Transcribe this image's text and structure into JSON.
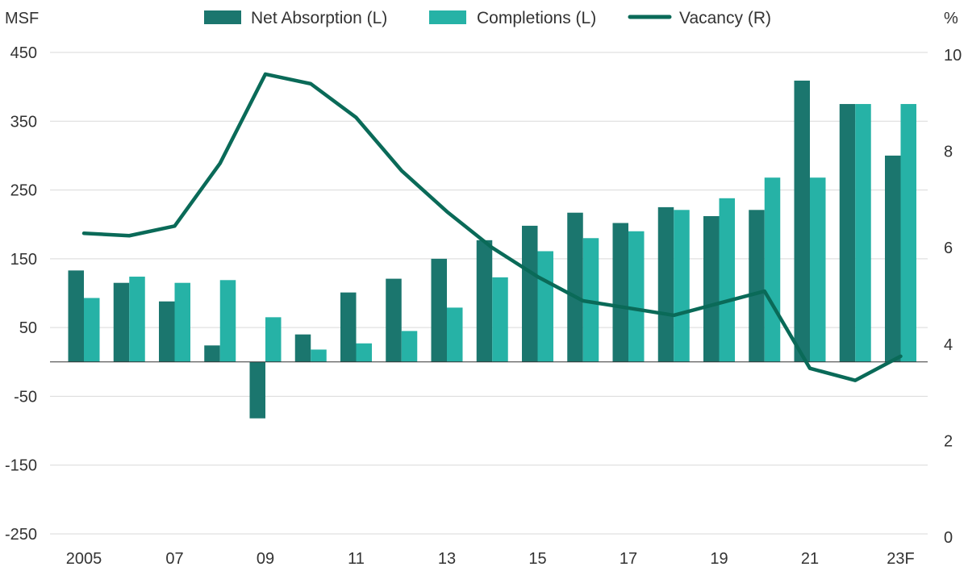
{
  "chart_data": {
    "type": "bar",
    "y_left_label": "MSF",
    "y_right_label": "%",
    "x_ticks": [
      "2005",
      "07",
      "09",
      "11",
      "13",
      "15",
      "17",
      "19",
      "21",
      "23F"
    ],
    "y_left_ticks": [
      "450",
      "350",
      "250",
      "150",
      "50",
      "-50",
      "-150",
      "-250"
    ],
    "y_right_ticks": [
      "10",
      "8",
      "6",
      "4",
      "2",
      "0"
    ],
    "ylim_left": [
      -250,
      450
    ],
    "ylim_right": [
      0,
      10
    ],
    "categories": [
      "2005",
      "2006",
      "2007",
      "2008",
      "2009",
      "2010",
      "2011",
      "2012",
      "2013",
      "2014",
      "2015",
      "2016",
      "2017",
      "2018",
      "2019",
      "2020",
      "2021",
      "2022",
      "2023F"
    ],
    "series": [
      {
        "name": "Net Absorption (L)",
        "type": "bar",
        "axis": "left",
        "color": "#1b766e",
        "values": [
          133,
          115,
          88,
          24,
          -82,
          40,
          101,
          121,
          150,
          177,
          198,
          217,
          202,
          225,
          212,
          221,
          409,
          375,
          300
        ]
      },
      {
        "name": "Completions (L)",
        "type": "bar",
        "axis": "left",
        "color": "#26b2a6",
        "values": [
          93,
          124,
          115,
          119,
          65,
          18,
          27,
          45,
          79,
          123,
          161,
          180,
          190,
          221,
          238,
          268,
          268,
          375,
          375
        ]
      },
      {
        "name": "Vacancy (R)",
        "type": "line",
        "axis": "right",
        "color": "#0a6a58",
        "values": [
          6.3,
          6.25,
          6.45,
          7.75,
          9.6,
          9.4,
          8.7,
          7.6,
          6.75,
          6.0,
          5.4,
          4.9,
          4.75,
          4.6,
          4.85,
          5.1,
          3.5,
          3.25,
          3.75
        ]
      }
    ],
    "grid": true,
    "legend_position": "top-center"
  }
}
